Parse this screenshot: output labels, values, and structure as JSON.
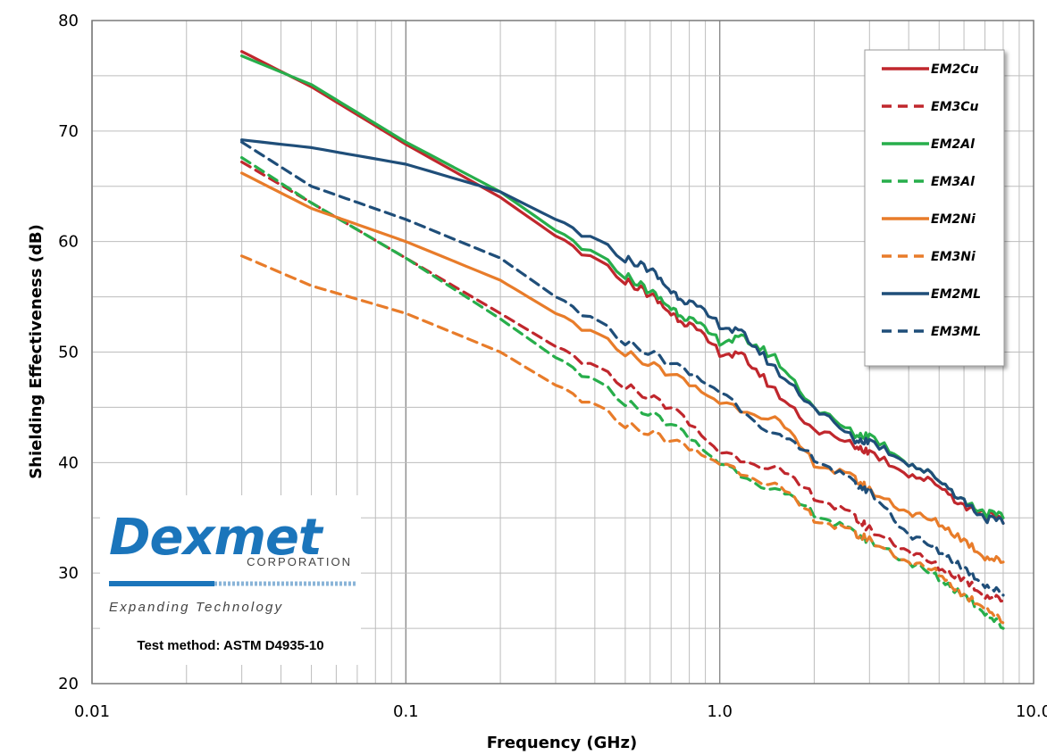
{
  "chart_data": {
    "type": "line",
    "xlabel": "Frequency (GHz)",
    "ylabel": "Shielding Effectiveness (dB)",
    "xscale": "log",
    "xlim": [
      0.01,
      10.0
    ],
    "ylim": [
      20,
      80
    ],
    "xticks": [
      0.01,
      0.1,
      1.0,
      10.0
    ],
    "xtick_labels": [
      "0.01",
      "0.1",
      "1.0",
      "10.0"
    ],
    "yticks": [
      20,
      30,
      40,
      50,
      60,
      70,
      80
    ],
    "ytick_labels": [
      "20",
      "30",
      "40",
      "50",
      "60",
      "70",
      "80"
    ],
    "grid": true,
    "legend_position": "top-right",
    "series": [
      {
        "name": "EM2Cu",
        "color": "#c0272d",
        "dash": "solid",
        "points": [
          [
            0.03,
            77.2
          ],
          [
            0.05,
            74.0
          ],
          [
            0.1,
            68.8
          ],
          [
            0.2,
            64.0
          ],
          [
            0.3,
            60.5
          ],
          [
            0.5,
            56.5
          ],
          [
            0.6,
            55.2
          ],
          [
            0.7,
            53.5
          ],
          [
            0.8,
            52.5
          ],
          [
            1.0,
            50.0
          ],
          [
            1.2,
            49.5
          ],
          [
            1.5,
            46.5
          ],
          [
            2.0,
            43.0
          ],
          [
            2.7,
            41.5
          ],
          [
            3.0,
            41.0
          ],
          [
            4.0,
            39.0
          ],
          [
            5.0,
            38.0
          ],
          [
            6.0,
            36.0
          ],
          [
            7.0,
            35.5
          ],
          [
            8.0,
            34.5
          ]
        ]
      },
      {
        "name": "EM3Cu",
        "color": "#c0272d",
        "dash": "dashed",
        "points": [
          [
            0.03,
            67.2
          ],
          [
            0.05,
            63.5
          ],
          [
            0.1,
            58.5
          ],
          [
            0.2,
            53.5
          ],
          [
            0.3,
            50.5
          ],
          [
            0.5,
            47.0
          ],
          [
            0.7,
            45.0
          ],
          [
            1.0,
            41.0
          ],
          [
            1.5,
            39.5
          ],
          [
            2.0,
            37.0
          ],
          [
            2.7,
            35.0
          ],
          [
            3.0,
            34.0
          ],
          [
            4.0,
            32.0
          ],
          [
            5.0,
            30.5
          ],
          [
            6.0,
            29.5
          ],
          [
            7.0,
            28.0
          ],
          [
            8.0,
            27.5
          ]
        ]
      },
      {
        "name": "EM2Al",
        "color": "#27ae4b",
        "dash": "solid",
        "points": [
          [
            0.03,
            76.8
          ],
          [
            0.05,
            74.2
          ],
          [
            0.1,
            69.0
          ],
          [
            0.2,
            64.5
          ],
          [
            0.3,
            61.0
          ],
          [
            0.5,
            57.0
          ],
          [
            0.6,
            55.5
          ],
          [
            0.7,
            54.0
          ],
          [
            0.8,
            53.0
          ],
          [
            1.0,
            51.0
          ],
          [
            1.2,
            51.2
          ],
          [
            1.5,
            49.5
          ],
          [
            2.0,
            45.0
          ],
          [
            2.7,
            42.5
          ],
          [
            3.0,
            42.5
          ],
          [
            4.0,
            40.0
          ],
          [
            5.0,
            38.5
          ],
          [
            6.0,
            36.5
          ],
          [
            7.0,
            35.5
          ],
          [
            8.0,
            35.0
          ]
        ]
      },
      {
        "name": "EM3Al",
        "color": "#27ae4b",
        "dash": "dashed",
        "points": [
          [
            0.03,
            67.6
          ],
          [
            0.05,
            63.5
          ],
          [
            0.1,
            58.5
          ],
          [
            0.2,
            53.0
          ],
          [
            0.3,
            49.5
          ],
          [
            0.5,
            45.5
          ],
          [
            0.7,
            43.5
          ],
          [
            1.0,
            40.0
          ],
          [
            1.5,
            37.5
          ],
          [
            2.0,
            35.5
          ],
          [
            2.7,
            33.5
          ],
          [
            3.0,
            33.0
          ],
          [
            4.0,
            31.0
          ],
          [
            5.0,
            29.5
          ],
          [
            6.0,
            28.0
          ],
          [
            7.0,
            26.5
          ],
          [
            8.0,
            25.0
          ]
        ]
      },
      {
        "name": "EM2Ni",
        "color": "#e87c2a",
        "dash": "solid",
        "points": [
          [
            0.03,
            66.2
          ],
          [
            0.05,
            63.0
          ],
          [
            0.1,
            60.0
          ],
          [
            0.2,
            56.5
          ],
          [
            0.3,
            53.5
          ],
          [
            0.5,
            50.0
          ],
          [
            0.7,
            48.0
          ],
          [
            1.0,
            45.5
          ],
          [
            1.5,
            44.0
          ],
          [
            2.0,
            40.0
          ],
          [
            2.7,
            38.5
          ],
          [
            3.0,
            37.5
          ],
          [
            4.0,
            35.5
          ],
          [
            5.0,
            34.5
          ],
          [
            6.0,
            33.0
          ],
          [
            7.0,
            31.5
          ],
          [
            8.0,
            31.0
          ]
        ]
      },
      {
        "name": "EM3Ni",
        "color": "#e87c2a",
        "dash": "dashed",
        "points": [
          [
            0.03,
            58.7
          ],
          [
            0.05,
            56.0
          ],
          [
            0.1,
            53.5
          ],
          [
            0.2,
            50.0
          ],
          [
            0.3,
            47.0
          ],
          [
            0.5,
            43.5
          ],
          [
            0.7,
            42.0
          ],
          [
            1.0,
            40.0
          ],
          [
            1.5,
            38.0
          ],
          [
            2.0,
            35.0
          ],
          [
            2.7,
            33.5
          ],
          [
            3.0,
            33.0
          ],
          [
            4.0,
            31.0
          ],
          [
            5.0,
            30.0
          ],
          [
            6.0,
            28.0
          ],
          [
            7.0,
            27.0
          ],
          [
            8.0,
            25.5
          ]
        ]
      },
      {
        "name": "EM2ML",
        "color": "#1f4e79",
        "dash": "solid",
        "points": [
          [
            0.03,
            69.2
          ],
          [
            0.05,
            68.5
          ],
          [
            0.1,
            67.0
          ],
          [
            0.2,
            64.5
          ],
          [
            0.3,
            62.0
          ],
          [
            0.5,
            58.5
          ],
          [
            0.6,
            57.5
          ],
          [
            0.7,
            55.5
          ],
          [
            0.8,
            54.5
          ],
          [
            1.0,
            52.5
          ],
          [
            1.2,
            51.5
          ],
          [
            1.5,
            48.5
          ],
          [
            2.0,
            45.0
          ],
          [
            2.7,
            42.0
          ],
          [
            3.0,
            42.0
          ],
          [
            4.0,
            40.0
          ],
          [
            5.0,
            38.5
          ],
          [
            6.0,
            36.5
          ],
          [
            7.0,
            35.0
          ],
          [
            8.0,
            34.5
          ]
        ]
      },
      {
        "name": "EM3ML",
        "color": "#1f4e79",
        "dash": "dashed",
        "points": [
          [
            0.03,
            69.0
          ],
          [
            0.05,
            65.0
          ],
          [
            0.1,
            62.0
          ],
          [
            0.2,
            58.5
          ],
          [
            0.3,
            55.0
          ],
          [
            0.5,
            51.0
          ],
          [
            0.7,
            49.0
          ],
          [
            1.0,
            46.5
          ],
          [
            1.5,
            42.5
          ],
          [
            2.0,
            40.5
          ],
          [
            2.7,
            38.0
          ],
          [
            3.0,
            37.5
          ],
          [
            4.0,
            33.5
          ],
          [
            5.0,
            32.0
          ],
          [
            6.0,
            30.5
          ],
          [
            7.0,
            29.0
          ],
          [
            8.0,
            28.0
          ]
        ]
      }
    ]
  },
  "logo": {
    "brand": "Dexmet",
    "subtitle": "CORPORATION",
    "tagline": "Expanding Technology",
    "test_method": "Test method:  ASTM D4935-10"
  }
}
